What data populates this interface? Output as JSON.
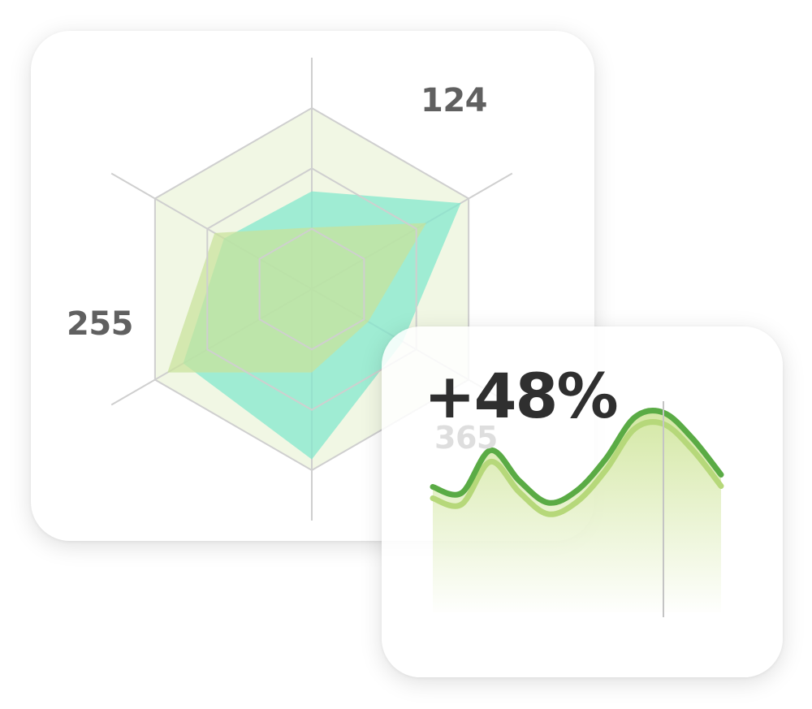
{
  "radar_card": {
    "labels": {
      "top_right": "124",
      "left": "255",
      "bottom_right": "365"
    }
  },
  "trend_card": {
    "change": "+48%"
  },
  "colors": {
    "grid": "#cfcfcf",
    "hexagon_fill": "#eef6df",
    "teal_series": "#7fe7cc",
    "lime_series": "#c9e29a",
    "line_dark": "#5aab45",
    "line_light": "#b6d87a",
    "area_fill": "#cfe59a"
  },
  "chart_data": [
    {
      "type": "radar",
      "title": "",
      "axes": 6,
      "rings": 3,
      "annotations": [
        "124",
        "255",
        "365"
      ],
      "series": [
        {
          "values": [
            0.54,
            0.95,
            0.58,
            0.94,
            0.82,
            0.56
          ]
        },
        {
          "values": [
            0.34,
            0.73,
            0.36,
            0.46,
            0.92,
            0.62
          ]
        }
      ]
    },
    {
      "type": "area",
      "title": "",
      "annotation": "+48%",
      "x": [
        0,
        0.1,
        0.2,
        0.3,
        0.4,
        0.5,
        0.6,
        0.7,
        0.8,
        0.9,
        1.0
      ],
      "y": [
        0.35,
        0.3,
        0.65,
        0.4,
        0.22,
        0.32,
        0.58,
        0.92,
        0.96,
        0.75,
        0.45
      ],
      "marker_x": 0.8
    }
  ]
}
